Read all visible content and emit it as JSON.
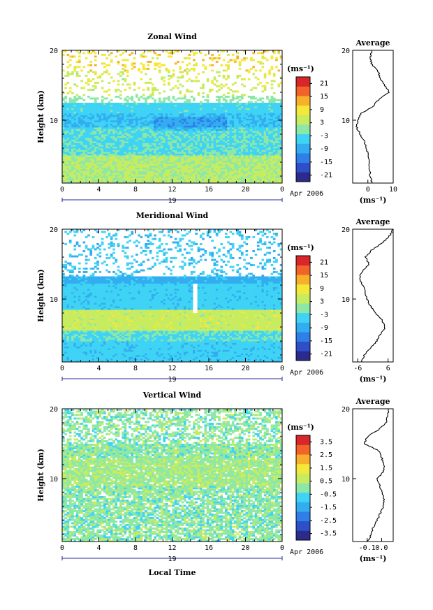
{
  "figure": {
    "xlabel": "Local Time",
    "date_label": "19",
    "month_label": "Apr 2006"
  },
  "colors": {
    "cmap": [
      "#2b2b8c",
      "#2f4fc9",
      "#2e7fe8",
      "#32aef0",
      "#3fd3f5",
      "#8de8a8",
      "#c8ec60",
      "#f4e83a",
      "#f8b02c",
      "#f2632a",
      "#d9262a"
    ]
  },
  "chart_data": [
    {
      "type": "heatmap",
      "title": "Zonal Wind",
      "ylabel": "Height (km)",
      "x_ticks": [
        "0",
        "4",
        "8",
        "12",
        "16",
        "20",
        "0"
      ],
      "y_ticks": [
        "10",
        "20"
      ],
      "xlim": [
        0,
        24
      ],
      "ylim": [
        1,
        20
      ],
      "unit_label": "(ms⁻¹)",
      "colorbar_ticks": [
        "-21",
        "-15",
        "-9",
        "-3",
        "3",
        "9",
        "15",
        "21"
      ],
      "colorbar_range": [
        -24,
        24
      ],
      "profile": {
        "title": "Average",
        "xlabel": "(ms⁻¹)",
        "x_ticks": [
          "0",
          "10"
        ],
        "y_ticks": [
          "10",
          "20"
        ],
        "xlim": [
          -6,
          10
        ],
        "height": [
          1,
          2,
          3,
          4,
          5,
          6,
          7,
          8,
          9,
          10,
          11,
          12,
          13,
          14,
          15,
          16,
          17,
          18,
          19,
          20
        ],
        "value": [
          1.5,
          1.0,
          0.5,
          0.5,
          0.0,
          -0.5,
          -1.5,
          -3.0,
          -4.5,
          -4.0,
          -2.5,
          2.0,
          4.5,
          8.5,
          6.5,
          5.0,
          4.0,
          1.5,
          1.0,
          1.5
        ]
      }
    },
    {
      "type": "heatmap",
      "title": "Meridional Wind",
      "ylabel": "Height (km)",
      "x_ticks": [
        "0",
        "4",
        "8",
        "12",
        "16",
        "20",
        "0"
      ],
      "y_ticks": [
        "10",
        "20"
      ],
      "xlim": [
        0,
        24
      ],
      "ylim": [
        1,
        20
      ],
      "unit_label": "(ms⁻¹)",
      "colorbar_ticks": [
        "-21",
        "-15",
        "-9",
        "-3",
        "3",
        "9",
        "15",
        "21"
      ],
      "colorbar_range": [
        -24,
        24
      ],
      "profile": {
        "title": "Average",
        "xlabel": "(ms⁻¹)",
        "x_ticks": [
          "-6",
          "6"
        ],
        "y_ticks": [
          "10",
          "20"
        ],
        "xlim": [
          -8,
          8
        ],
        "height": [
          1,
          2,
          3,
          4,
          5,
          6,
          7,
          8,
          9,
          10,
          11,
          12,
          13,
          14,
          15,
          16,
          17,
          18,
          19,
          20
        ],
        "value": [
          -4.5,
          -3.5,
          -1.0,
          1.5,
          3.0,
          5.0,
          3.5,
          1.0,
          -1.0,
          -2.5,
          -3.0,
          -4.0,
          -5.5,
          -4.0,
          -1.5,
          -3.0,
          -0.5,
          3.5,
          6.5,
          8.0
        ]
      }
    },
    {
      "type": "heatmap",
      "title": "Vertical Wind",
      "ylabel": "Height (km)",
      "x_ticks": [
        "0",
        "4",
        "8",
        "12",
        "16",
        "20",
        "0"
      ],
      "y_ticks": [
        "10",
        "20"
      ],
      "xlim": [
        0,
        24
      ],
      "ylim": [
        1,
        20
      ],
      "unit_label": "(ms⁻¹)",
      "colorbar_ticks": [
        "-3.5",
        "-2.5",
        "-1.5",
        "-0.5",
        "0.5",
        "1.5",
        "2.5",
        "3.5"
      ],
      "colorbar_range": [
        -4,
        4
      ],
      "profile": {
        "title": "Average",
        "xlabel": "(ms⁻¹)",
        "x_ticks": [
          "-0.1",
          "0.0"
        ],
        "y_ticks": [
          "10",
          "20"
        ],
        "xlim": [
          -0.2,
          0.08
        ],
        "height": [
          1,
          2,
          3,
          4,
          5,
          6,
          7,
          8,
          9,
          10,
          11,
          12,
          13,
          14,
          15,
          16,
          17,
          18,
          19,
          20
        ],
        "value": [
          -0.1,
          -0.07,
          -0.06,
          -0.03,
          -0.01,
          0.01,
          0.02,
          0.0,
          -0.01,
          -0.03,
          0.01,
          0.02,
          0.0,
          -0.02,
          -0.12,
          -0.1,
          -0.02,
          0.03,
          0.04,
          0.05
        ]
      }
    }
  ]
}
